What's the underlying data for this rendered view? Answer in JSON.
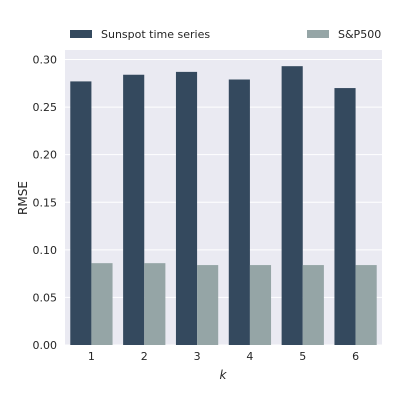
{
  "chart_data": {
    "type": "bar",
    "xlabel": "k",
    "ylabel": "RMSE",
    "categories": [
      "1",
      "2",
      "3",
      "4",
      "5",
      "6"
    ],
    "series": [
      {
        "name": "Sunspot time series",
        "color": "#34495e",
        "values": [
          0.277,
          0.284,
          0.287,
          0.279,
          0.293,
          0.27
        ]
      },
      {
        "name": "S&P500",
        "color": "#95a5a6",
        "values": [
          0.086,
          0.086,
          0.084,
          0.084,
          0.084,
          0.084
        ]
      }
    ],
    "ylim": [
      0,
      0.31
    ],
    "yticks": [
      "0.00",
      "0.05",
      "0.10",
      "0.15",
      "0.20",
      "0.25",
      "0.30"
    ],
    "grid": true,
    "legend": "top"
  }
}
